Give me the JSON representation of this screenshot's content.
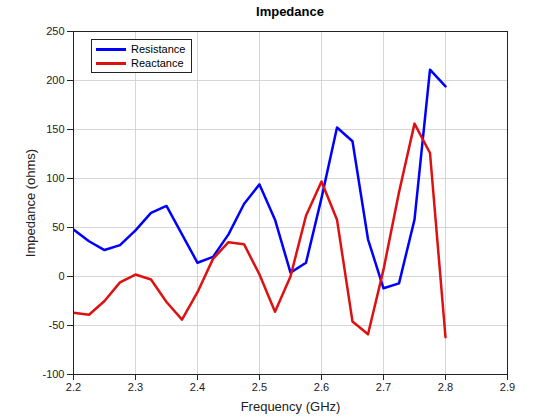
{
  "chart_data": {
    "type": "line",
    "title": "Impedance",
    "x_label": "Frequency (GHz)",
    "y_label": "Impedance (ohms)",
    "x": [
      2.2,
      2.225,
      2.25,
      2.275,
      2.3,
      2.325,
      2.35,
      2.375,
      2.4,
      2.425,
      2.45,
      2.475,
      2.5,
      2.525,
      2.55,
      2.575,
      2.6,
      2.625,
      2.65,
      2.675,
      2.7,
      2.725,
      2.75,
      2.775,
      2.8
    ],
    "series": [
      {
        "name": "Resistance",
        "color": "#0000ff",
        "values": [
          48,
          36,
          27,
          32,
          47,
          65,
          72,
          43,
          14,
          20,
          43,
          74,
          94,
          58,
          4,
          14,
          80,
          152,
          138,
          38,
          -12,
          -7,
          58,
          211,
          194
        ]
      },
      {
        "name": "Reactance",
        "color": "#dd1111",
        "values": [
          -37,
          -39,
          -25,
          -6,
          2,
          -3,
          -26,
          -44,
          -16,
          18,
          35,
          33,
          2,
          -36,
          0,
          62,
          97,
          58,
          -46,
          -59,
          7,
          86,
          156,
          126,
          -62
        ]
      }
    ],
    "xlim": [
      2.2,
      2.9
    ],
    "xticks": [
      2.2,
      2.3,
      2.4,
      2.5,
      2.6,
      2.7,
      2.8,
      2.9
    ],
    "ylim": [
      -100,
      250
    ],
    "yticks": [
      -100,
      -50,
      0,
      50,
      100,
      150,
      200,
      250
    ],
    "grid": true,
    "legend": "northwest"
  }
}
